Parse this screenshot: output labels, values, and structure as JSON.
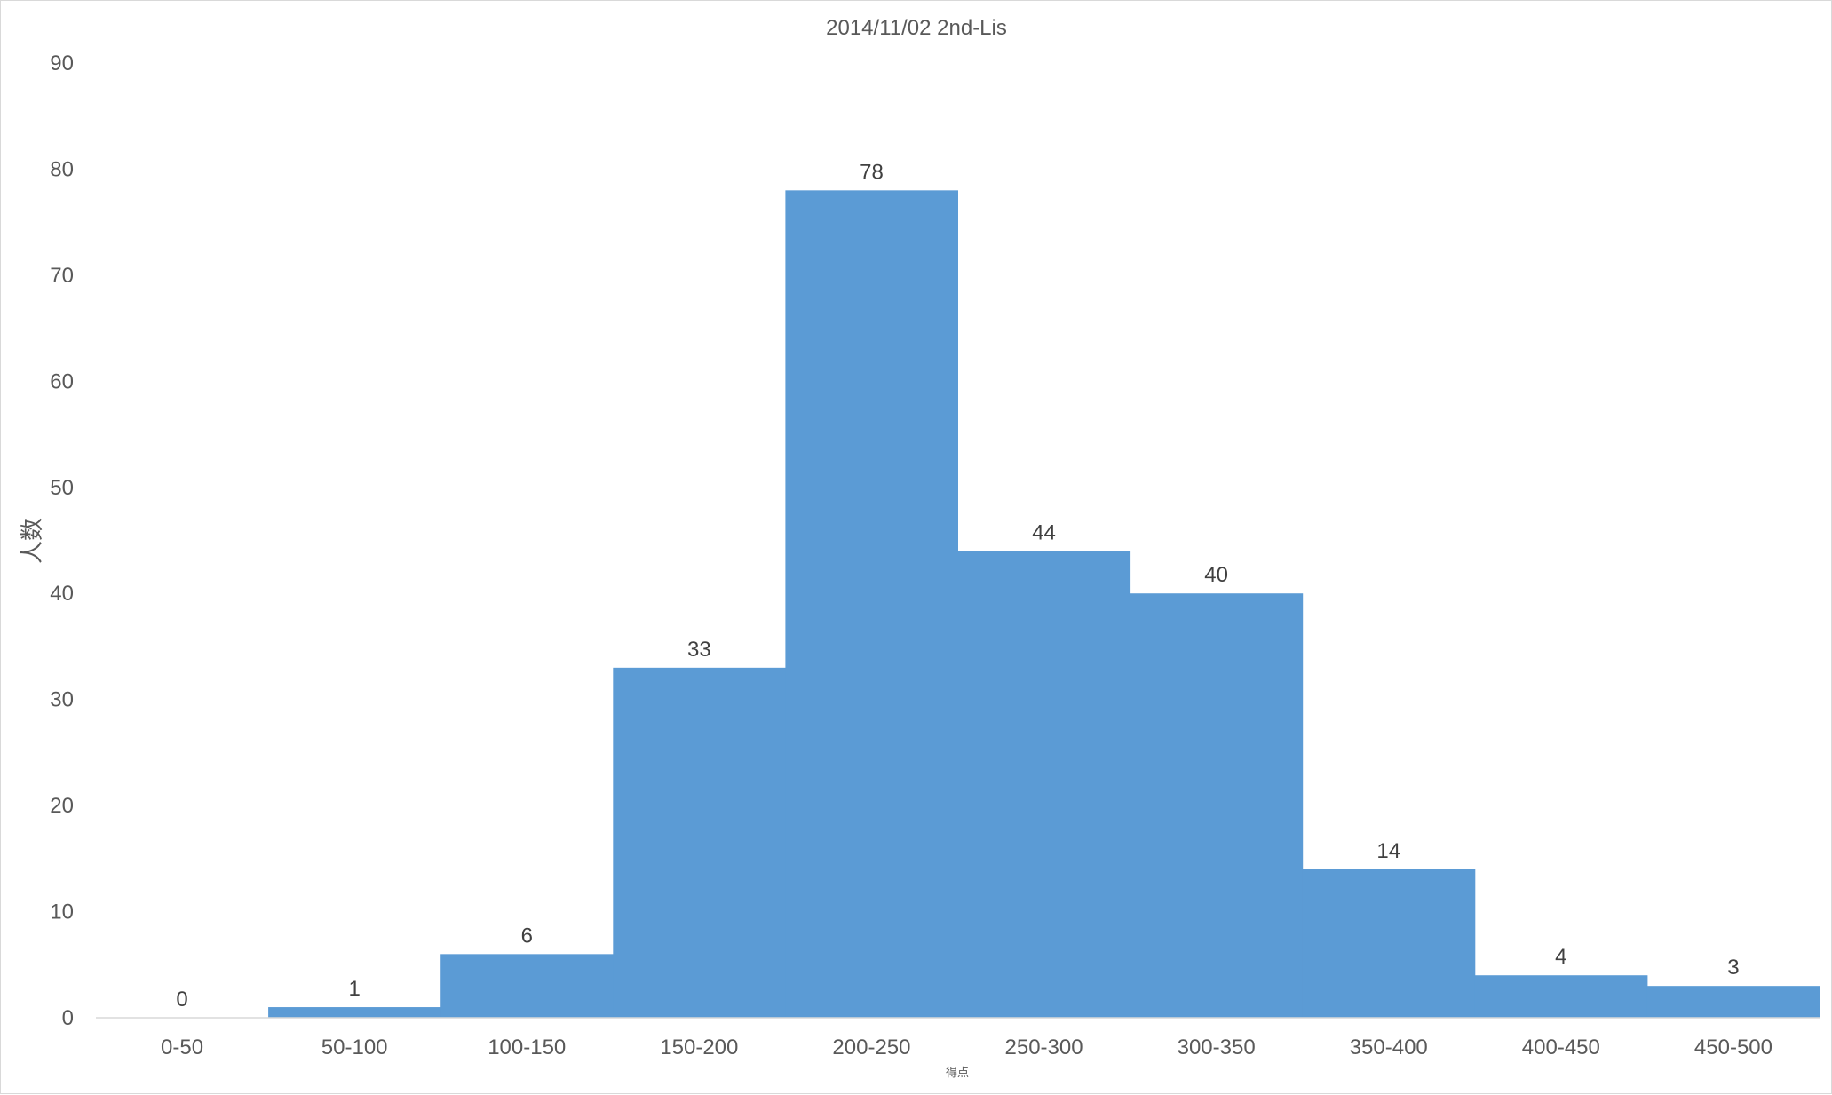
{
  "chart_data": {
    "type": "bar",
    "title": "2014/11/02 2nd-Lis",
    "xlabel": "得点",
    "ylabel": "人数",
    "categories": [
      "0-50",
      "50-100",
      "100-150",
      "150-200",
      "200-250",
      "250-300",
      "300-350",
      "350-400",
      "400-450",
      "450-500"
    ],
    "values": [
      0,
      1,
      6,
      33,
      78,
      44,
      40,
      14,
      4,
      3
    ],
    "ylim": [
      0,
      90
    ],
    "yticks": [
      0,
      10,
      20,
      30,
      40,
      50,
      60,
      70,
      80,
      90
    ],
    "grid": false,
    "legend": "none",
    "bar_color": "#5b9bd5",
    "bar_gap": "none",
    "data_labels": true
  }
}
